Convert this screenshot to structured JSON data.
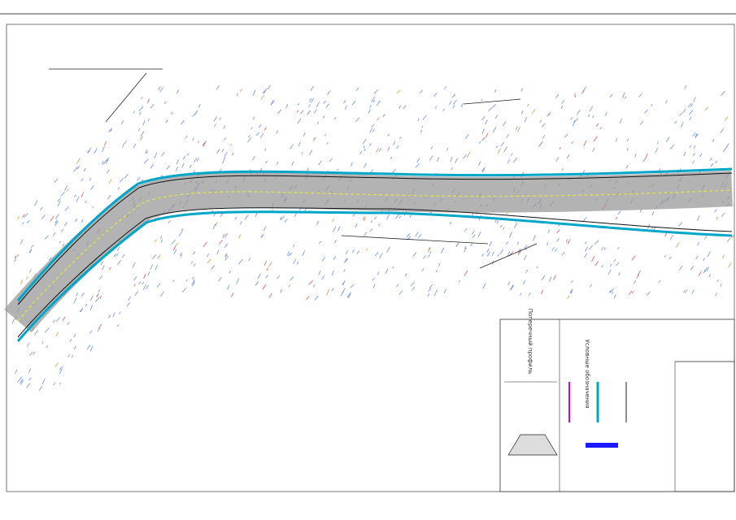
{
  "drawing": {
    "legend_title": "Условные обозначения",
    "section_title": "Поперечный профиль"
  }
}
